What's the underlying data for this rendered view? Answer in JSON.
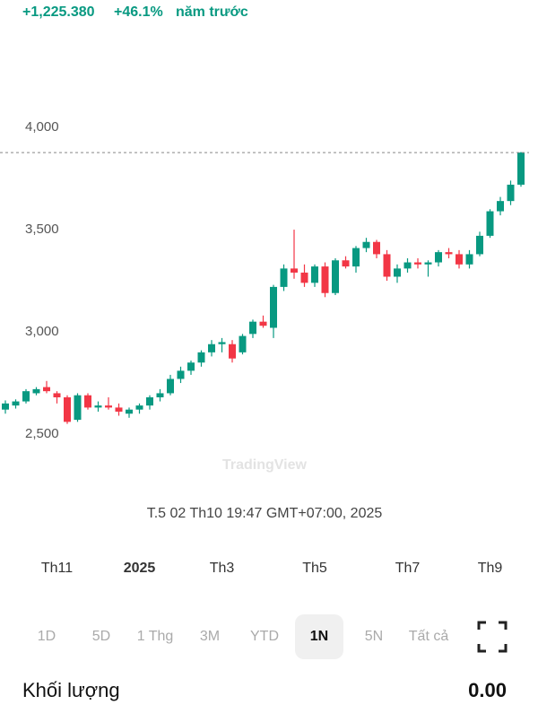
{
  "header": {
    "change": "+1,225.380",
    "percent": "+46.1%",
    "period": "năm trước"
  },
  "chart_data": {
    "type": "candlestick",
    "categories": [
      null,
      null,
      null,
      null,
      null,
      "Th11",
      null,
      null,
      null,
      null,
      null,
      null,
      null,
      "2025",
      null,
      null,
      null,
      null,
      null,
      null,
      null,
      "Th3",
      null,
      null,
      null,
      null,
      null,
      null,
      null,
      null,
      "Th5",
      null,
      null,
      null,
      null,
      null,
      null,
      null,
      null,
      "Th7",
      null,
      null,
      null,
      null,
      null,
      null,
      null,
      "Th9",
      null,
      null,
      null
    ],
    "open": [
      2620,
      2640,
      2660,
      2700,
      2730,
      2700,
      2680,
      2570,
      2690,
      2630,
      2640,
      2630,
      2600,
      2620,
      2640,
      2680,
      2700,
      2770,
      2810,
      2850,
      2900,
      2940,
      2940,
      2900,
      2990,
      3050,
      3020,
      3220,
      3310,
      3290,
      3240,
      3320,
      3190,
      3350,
      3320,
      3410,
      3440,
      3380,
      3270,
      3310,
      3340,
      3330,
      3340,
      3390,
      3380,
      3330,
      3380,
      3470,
      3590,
      3640,
      3720
    ],
    "high": [
      2665,
      2670,
      2720,
      2730,
      2760,
      2710,
      2690,
      2700,
      2700,
      2660,
      2680,
      2650,
      2630,
      2650,
      2690,
      2720,
      2790,
      2830,
      2860,
      2910,
      2960,
      2970,
      2960,
      2990,
      3060,
      3080,
      3230,
      3330,
      3500,
      3330,
      3330,
      3340,
      3360,
      3370,
      3420,
      3460,
      3450,
      3400,
      3330,
      3360,
      3360,
      3350,
      3400,
      3410,
      3400,
      3400,
      3490,
      3600,
      3660,
      3740,
      3880
    ],
    "low": [
      2600,
      2625,
      2650,
      2690,
      2700,
      2650,
      2550,
      2560,
      2620,
      2610,
      2620,
      2590,
      2580,
      2600,
      2620,
      2660,
      2690,
      2750,
      2790,
      2830,
      2880,
      2900,
      2850,
      2890,
      2970,
      3020,
      2970,
      3200,
      3260,
      3220,
      3220,
      3170,
      3180,
      3310,
      3290,
      3390,
      3360,
      3250,
      3240,
      3290,
      3310,
      3270,
      3320,
      3360,
      3310,
      3310,
      3370,
      3460,
      3570,
      3620,
      3710
    ],
    "close": [
      2650,
      2660,
      2710,
      2720,
      2710,
      2680,
      2560,
      2690,
      2630,
      2640,
      2630,
      2610,
      2620,
      2640,
      2680,
      2700,
      2770,
      2810,
      2850,
      2900,
      2940,
      2950,
      2870,
      2980,
      3050,
      3030,
      3220,
      3310,
      3290,
      3240,
      3320,
      3190,
      3350,
      3320,
      3410,
      3440,
      3380,
      3270,
      3310,
      3340,
      3330,
      3340,
      3390,
      3380,
      3330,
      3380,
      3470,
      3590,
      3640,
      3720,
      3877
    ],
    "up_color": "#089981",
    "down_color": "#f23645",
    "ylim": [
      2430,
      4360
    ],
    "yticks": [
      {
        "value": 2500,
        "label": "2,500"
      },
      {
        "value": 3000,
        "label": "3,000"
      },
      {
        "value": 3500,
        "label": "3,500"
      },
      {
        "value": 4000,
        "label": "4,000"
      }
    ],
    "watermark": "TradingView",
    "crosshair_time": "T.5 02 Th10 19:47 GMT+07:00, 2025"
  },
  "ranges": [
    "1D",
    "5D",
    "1 Thg",
    "3M",
    "YTD",
    "1N",
    "5N",
    "Tất cả"
  ],
  "selected_range": 5,
  "footer": {
    "label": "Khối lượng",
    "value": "0.00"
  }
}
